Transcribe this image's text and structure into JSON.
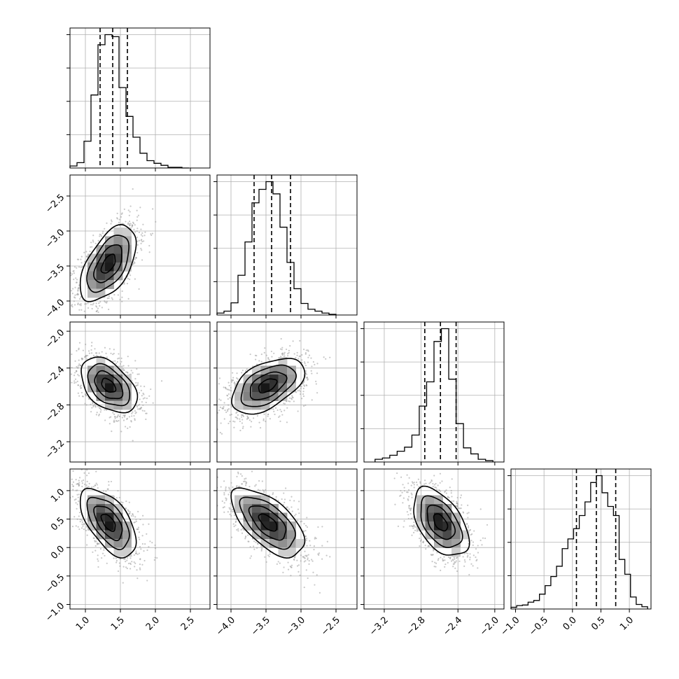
{
  "chart_data": {
    "type": "corner",
    "title": "",
    "grid": true,
    "parameters": [
      {
        "ticks": [
          1.0,
          1.5,
          2.0,
          2.5
        ],
        "range": [
          0.78,
          2.78
        ],
        "quantiles": [
          1.21,
          1.39,
          1.6
        ],
        "hist_edges": [
          0.78,
          0.88,
          0.98,
          1.08,
          1.18,
          1.28,
          1.38,
          1.48,
          1.58,
          1.68,
          1.78,
          1.88,
          1.98,
          2.08,
          2.18,
          2.28,
          2.38,
          2.48
        ],
        "hist_counts": [
          3,
          8,
          40,
          109,
          184,
          199,
          196,
          120,
          77,
          46,
          22,
          11,
          7,
          4,
          1,
          1,
          0
        ],
        "tick_labels": [
          "1.0",
          "1.5",
          "2.0",
          "2.5"
        ]
      },
      {
        "ticks": [
          -4.0,
          -3.5,
          -3.0,
          -2.5
        ],
        "range": [
          -4.2,
          -2.2
        ],
        "quantiles": [
          -3.67,
          -3.42,
          -3.15
        ],
        "hist_edges": [
          -4.2,
          -4.1,
          -4.0,
          -3.9,
          -3.8,
          -3.7,
          -3.6,
          -3.5,
          -3.4,
          -3.3,
          -3.2,
          -3.1,
          -3.0,
          -2.9,
          -2.8,
          -2.7,
          -2.6,
          -2.5
        ],
        "hist_counts": [
          3,
          6,
          19,
          62,
          114,
          175,
          196,
          208,
          189,
          137,
          82,
          41,
          18,
          9,
          6,
          3,
          1
        ],
        "tick_labels": [
          "-4.0",
          "-3.5",
          "-3.0",
          "-2.5"
        ]
      },
      {
        "ticks": [
          -3.2,
          -2.8,
          -2.4,
          -2.0
        ],
        "range": [
          -3.42,
          -1.9
        ],
        "quantiles": [
          -2.76,
          -2.59,
          -2.42
        ],
        "hist_edges": [
          -3.3,
          -3.22,
          -3.14,
          -3.06,
          -2.98,
          -2.9,
          -2.82,
          -2.74,
          -2.66,
          -2.58,
          -2.5,
          -2.42,
          -2.34,
          -2.26,
          -2.18,
          -2.1,
          -2.02
        ],
        "hist_counts": [
          4,
          6,
          10,
          16,
          22,
          40,
          83,
          119,
          179,
          198,
          123,
          57,
          21,
          12,
          4,
          2
        ],
        "tick_labels": [
          "-3.2",
          "-2.8",
          "-2.4",
          "-2.0"
        ]
      },
      {
        "ticks": [
          -1.0,
          -0.5,
          0.0,
          0.5,
          1.0
        ],
        "range": [
          -1.08,
          1.38
        ],
        "quantiles": [
          0.07,
          0.42,
          0.76
        ],
        "hist_edges": [
          -1.08,
          -0.98,
          -0.88,
          -0.78,
          -0.68,
          -0.58,
          -0.48,
          -0.38,
          -0.28,
          -0.18,
          -0.08,
          0.02,
          0.12,
          0.22,
          0.32,
          0.42,
          0.52,
          0.62,
          0.72,
          0.82,
          0.92,
          1.02,
          1.12,
          1.22,
          1.32
        ],
        "hist_counts": [
          3,
          6,
          7,
          12,
          15,
          26,
          41,
          57,
          75,
          106,
          123,
          141,
          164,
          188,
          222,
          234,
          204,
          180,
          164,
          87,
          61,
          21,
          8,
          4
        ],
        "tick_labels": [
          "-1.0",
          "-0.5",
          "0.0",
          "0.5",
          "1.0"
        ]
      }
    ],
    "pairs": [
      {
        "row": 1,
        "col": 0,
        "mode": [
          1.33,
          -3.47
        ],
        "sd": [
          0.2,
          0.27
        ],
        "rho": 0.55,
        "scatter_count": 1600
      },
      {
        "row": 2,
        "col": 0,
        "mode": [
          1.33,
          -2.59
        ],
        "sd": [
          0.2,
          0.15
        ],
        "rho": -0.45,
        "scatter_count": 1600
      },
      {
        "row": 2,
        "col": 1,
        "mode": [
          -3.48,
          -2.59
        ],
        "sd": [
          0.26,
          0.15
        ],
        "rho": 0.5,
        "scatter_count": 1600
      },
      {
        "row": 3,
        "col": 0,
        "mode": [
          1.33,
          0.44
        ],
        "sd": [
          0.2,
          0.3
        ],
        "rho": -0.58,
        "scatter_count": 1600
      },
      {
        "row": 3,
        "col": 1,
        "mode": [
          -3.47,
          0.44
        ],
        "sd": [
          0.26,
          0.3
        ],
        "rho": -0.62,
        "scatter_count": 1600
      },
      {
        "row": 3,
        "col": 2,
        "mode": [
          -2.59,
          0.44
        ],
        "sd": [
          0.15,
          0.3
        ],
        "rho": -0.5,
        "scatter_count": 1600
      }
    ],
    "contour_levels_sigma": [
      0.5,
      1.0,
      1.5,
      2.0
    ],
    "colors": {
      "line": "#000000",
      "grid": "#b0b0b0",
      "scatter": "#9a9a9a",
      "frame": "#000000"
    }
  }
}
